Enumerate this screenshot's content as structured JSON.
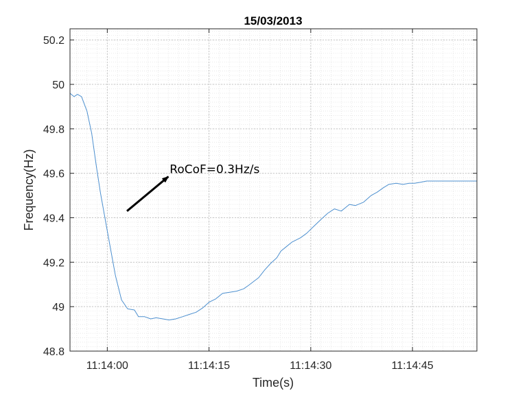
{
  "chart_data": {
    "type": "line",
    "title": "15/03/2013",
    "xlabel": "Time(s)",
    "ylabel": "Frequency(Hz)",
    "xlim_seconds": [
      -5.5,
      54.5
    ],
    "ylim": [
      48.8,
      50.25
    ],
    "xticks": [
      {
        "value": 0,
        "label": "11:14:00"
      },
      {
        "value": 15,
        "label": "11:14:15"
      },
      {
        "value": 30,
        "label": "11:14:30"
      },
      {
        "value": 45,
        "label": "11:14:45"
      }
    ],
    "yticks": [
      {
        "value": 48.8,
        "label": "48.8"
      },
      {
        "value": 49.0,
        "label": "49"
      },
      {
        "value": 49.2,
        "label": "49.2"
      },
      {
        "value": 49.4,
        "label": "49.4"
      },
      {
        "value": 49.6,
        "label": "49.6"
      },
      {
        "value": 49.8,
        "label": "49.8"
      },
      {
        "value": 50.0,
        "label": "50"
      },
      {
        "value": 50.2,
        "label": "50.2"
      }
    ],
    "grid": true,
    "minor_grid": true,
    "series": [
      {
        "color": "#4c8fcf",
        "x": [
          -5.5,
          -4.9,
          -4.4,
          -3.8,
          -3.0,
          -2.3,
          -1.6,
          -1.0,
          0.0,
          0.6,
          1.2,
          2.1,
          3.0,
          4.0,
          4.6,
          5.5,
          6.4,
          7.2,
          8.2,
          9.1,
          10.1,
          11.1,
          12.1,
          13.1,
          14.1,
          15.0,
          16.0,
          17.0,
          18.1,
          19.1,
          20.1,
          20.8,
          22.3,
          23.2,
          24.1,
          25.0,
          25.6,
          26.4,
          27.2,
          28.5,
          29.4,
          30.4,
          31.6,
          32.5,
          33.5,
          34.5,
          35.7,
          36.6,
          37.8,
          38.9,
          39.8,
          40.7,
          41.5,
          42.6,
          43.6,
          44.5,
          45.3,
          46.2,
          47.1,
          47.9,
          48.8,
          49.6,
          50.6,
          51.6,
          52.6,
          53.4,
          54.5
        ],
        "y": [
          49.96,
          49.945,
          49.955,
          49.945,
          49.88,
          49.78,
          49.63,
          49.51,
          49.34,
          49.24,
          49.14,
          49.03,
          48.99,
          48.985,
          48.955,
          48.955,
          48.945,
          48.95,
          48.945,
          48.94,
          48.945,
          48.955,
          48.965,
          48.975,
          48.995,
          49.02,
          49.035,
          49.06,
          49.065,
          49.07,
          49.08,
          49.095,
          49.13,
          49.165,
          49.195,
          49.22,
          49.25,
          49.27,
          49.29,
          49.31,
          49.33,
          49.36,
          49.395,
          49.42,
          49.44,
          49.43,
          49.46,
          49.455,
          49.47,
          49.5,
          49.515,
          49.535,
          49.55,
          49.555,
          49.55,
          49.555,
          49.555,
          49.56,
          49.565,
          49.565,
          49.565,
          49.565,
          49.565,
          49.565,
          49.565,
          49.565,
          49.565
        ]
      }
    ],
    "annotation": {
      "text": "RoCoF=0.3Hz/s",
      "arrow": {
        "from": [
          2.9,
          49.43
        ],
        "to": [
          9.0,
          49.585
        ]
      },
      "text_at": [
        9.2,
        49.6
      ]
    }
  }
}
